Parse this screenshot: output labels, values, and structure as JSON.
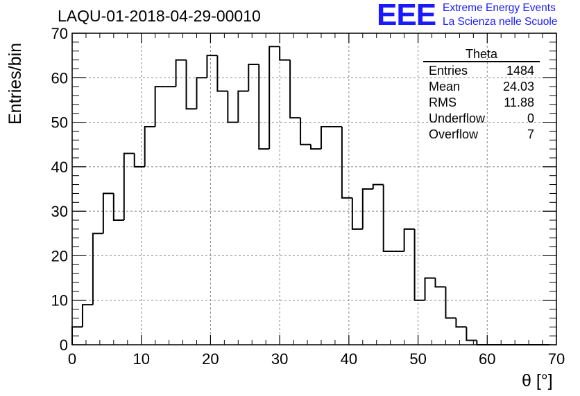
{
  "chart_data": {
    "type": "bar",
    "title": "LAQU-01-2018-04-29-00010",
    "xlabel": "θ [°]",
    "ylabel": "Entries/bin",
    "xlim": [
      0,
      70
    ],
    "ylim": [
      0,
      70
    ],
    "x_ticks": [
      "0",
      "10",
      "20",
      "30",
      "40",
      "50",
      "60",
      "70"
    ],
    "y_ticks": [
      "0",
      "10",
      "20",
      "30",
      "40",
      "50",
      "60",
      "70"
    ],
    "bin_width": 1.5,
    "bin_start": 0,
    "values": [
      4,
      9,
      25,
      34,
      28,
      43,
      40,
      49,
      58,
      58,
      64,
      53,
      60,
      65,
      57,
      50,
      57,
      63,
      44,
      67,
      64,
      51,
      45,
      44,
      49,
      49,
      33,
      26,
      35,
      36,
      21,
      21,
      26,
      10,
      15,
      13,
      6,
      4,
      1,
      0,
      0,
      0,
      0,
      0,
      0,
      0
    ],
    "grid": true,
    "style": "step-histogram"
  },
  "logo": {
    "text": "EEE",
    "line1": "Extreme Energy Events",
    "line2": "La Scienza nelle Scuole"
  },
  "stats": {
    "title": "Theta",
    "rows": [
      {
        "label": "Entries",
        "value": "1484"
      },
      {
        "label": "Mean",
        "value": "24.03"
      },
      {
        "label": "RMS",
        "value": "11.88"
      },
      {
        "label": "Underflow",
        "value": "0"
      },
      {
        "label": "Overflow",
        "value": "7"
      }
    ]
  }
}
